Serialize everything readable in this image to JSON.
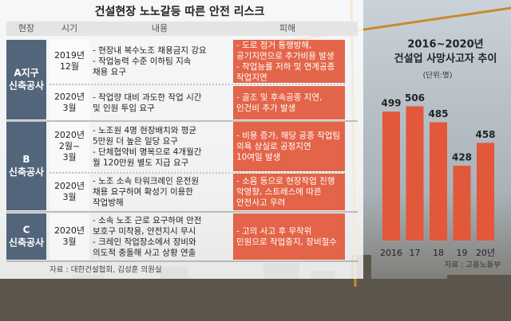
{
  "table": {
    "title": "건설현장 노노갈등 따른 안전 리스크",
    "headers": [
      "현장",
      "시기",
      "내용",
      "피해"
    ],
    "groups": [
      {
        "label": [
          "A지구",
          "신축공사"
        ],
        "rows": [
          {
            "date": [
              "2019년",
              "12월"
            ],
            "content": [
              "- 현장내 복수노조 채용금지 강요",
              "- 작업능력 수준 이하팀 지속",
              "  채용 요구"
            ],
            "damage": [
              "- 도로 점거 통행방해,",
              "  공기지연으로 추가비용 발생",
              "- 작업능률 저하 및 연계공종",
              "  작업지연"
            ]
          },
          {
            "date": [
              "2020년",
              "3월"
            ],
            "content": [
              "- 작업량 대비 과도한 작업 시간",
              "  및 인원 투입 요구"
            ],
            "damage": [
              "- 골조 및 후속공종 지연,",
              "  인건비 추가 발생"
            ]
          }
        ]
      },
      {
        "label": [
          "B",
          "신축공사"
        ],
        "rows": [
          {
            "date": [
              "2020년",
              "2월~",
              "3월"
            ],
            "content": [
              "- 노조원 4명 현장배치와 평균",
              "  5만원 더 높은 일당 요구",
              "- 단체협약비 명목으로 4개월간",
              "  월 120만원 별도 지급 요구"
            ],
            "damage": [
              "- 비용 증가, 해당 공종 작업팀",
              "  의욕 상실로 공정지연",
              "  10여일 발생"
            ]
          },
          {
            "date": [
              "2020년",
              "3월"
            ],
            "content": [
              "- 노조 소속 타워크레인 운전원",
              "  채용 요구하며 확성기 이용한",
              "  작업방해"
            ],
            "damage": [
              "- 소음 등으로 현장작업 진행",
              "  악영향, 스트레스에 따른",
              "  안전사고 우려"
            ]
          }
        ]
      },
      {
        "label": [
          "C",
          "신축공사"
        ],
        "rows": [
          {
            "date": [
              "2020년",
              "3월"
            ],
            "content": [
              "- 소속 노조 근로 요구하며 안전",
              "  보호구 미착용, 안전지시 무시",
              "- 크레인 작업장소에서 장비와",
              "  의도적 충돌해 사고 상황 연출"
            ],
            "damage": [
              "- 고의 사고 후 무작위",
              "  민원으로 작업중지, 장비철수"
            ]
          }
        ]
      }
    ],
    "source": "자료 : 대한건설협회, 김성훈 의원실"
  },
  "chart_data": {
    "type": "bar",
    "title": [
      "2016~2020년",
      "건설업 사망사고자 추이"
    ],
    "subtitle": "(단위:명)",
    "categories": [
      "2016",
      "17",
      "18",
      "19",
      "20년"
    ],
    "values": [
      499,
      506,
      485,
      428,
      458
    ],
    "color": "#e2583a",
    "ylim": [
      330,
      520
    ],
    "source": "자료 : 고용노동부"
  }
}
